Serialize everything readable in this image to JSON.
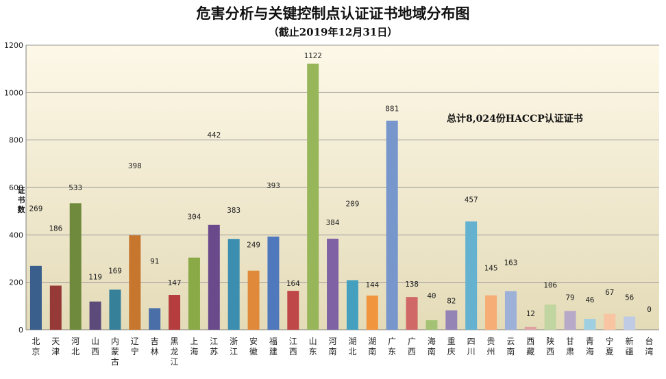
{
  "chart_data": {
    "type": "bar",
    "title": "危害分析与关键控制点认证证书地域分布图",
    "subtitle": "（截止2019年12月31日）",
    "ylabel": "证书数",
    "xlabel": "",
    "ylim": [
      0,
      1200
    ],
    "yticks": [
      0,
      200,
      400,
      600,
      800,
      1000,
      1200
    ],
    "grid": true,
    "legend": "none",
    "annotation": "总计8,024份HACCP认证证书",
    "background": [
      "#fdf8e8",
      "#e4dbb8"
    ],
    "categories": [
      "北京",
      "天津",
      "河北",
      "山西",
      "内蒙古",
      "辽宁",
      "吉林",
      "黑龙江",
      "上海",
      "江苏",
      "浙江",
      "安徽",
      "福建",
      "江西",
      "山东",
      "河南",
      "湖北",
      "湖南",
      "广东",
      "广西",
      "海南",
      "重庆",
      "四川",
      "贵州",
      "云南",
      "西藏",
      "陕西",
      "甘肃",
      "青海",
      "宁夏",
      "新疆",
      "台湾"
    ],
    "values": [
      269,
      186,
      533,
      119,
      169,
      398,
      91,
      147,
      304,
      442,
      383,
      249,
      393,
      164,
      1122,
      384,
      209,
      144,
      881,
      138,
      40,
      82,
      457,
      145,
      163,
      12,
      106,
      79,
      46,
      67,
      56,
      0
    ],
    "colors": [
      "#3a5f8c",
      "#963a38",
      "#6f8a3c",
      "#5b4a7a",
      "#36809a",
      "#c7762e",
      "#4a6fa8",
      "#b53d3d",
      "#8aaa48",
      "#6b4a8c",
      "#3b8eb0",
      "#e0893a",
      "#4f78bd",
      "#c04747",
      "#97b65a",
      "#7e62a3",
      "#45a0c0",
      "#f1953f",
      "#7796cc",
      "#d06868",
      "#a4c274",
      "#9484b5",
      "#64b2cf",
      "#f6ad76",
      "#9cb0d8",
      "#e0a2a0",
      "#c0d59f",
      "#b7aac8",
      "#9fd0e2",
      "#f8c4a2",
      "#bfcbe4",
      "#ecc0be"
    ]
  }
}
